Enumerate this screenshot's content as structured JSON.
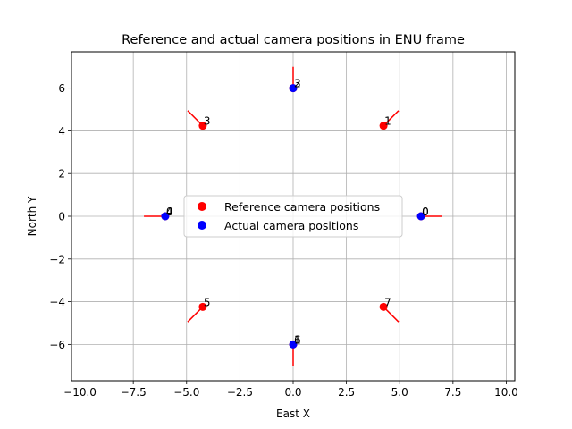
{
  "chart_data": {
    "type": "scatter",
    "title": "Reference and actual camera positions in ENU frame",
    "xlabel": "East X",
    "ylabel": "North Y",
    "xlim": [
      -10.4,
      10.4
    ],
    "ylim": [
      -7.7,
      7.7
    ],
    "xticks": [
      -10.0,
      -7.5,
      -5.0,
      -2.5,
      0.0,
      2.5,
      5.0,
      7.5,
      10.0
    ],
    "xtick_labels": [
      "−10.0",
      "−7.5",
      "−5.0",
      "−2.5",
      "0.0",
      "2.5",
      "5.0",
      "7.5",
      "10.0"
    ],
    "yticks": [
      -6,
      -4,
      -2,
      0,
      2,
      4,
      6
    ],
    "ytick_labels": [
      "−6",
      "−4",
      "−2",
      "0",
      "2",
      "4",
      "6"
    ],
    "grid": true,
    "legend_position": "center",
    "series": [
      {
        "name": "Reference camera positions",
        "color": "#ff0000",
        "points": [
          {
            "x": 6.0,
            "y": 0.0,
            "label": "0",
            "dir_deg": 0
          },
          {
            "x": 4.24,
            "y": 4.24,
            "label": "1",
            "dir_deg": 45
          },
          {
            "x": 0.0,
            "y": 6.0,
            "label": "2",
            "dir_deg": 90
          },
          {
            "x": -4.24,
            "y": 4.24,
            "label": "3",
            "dir_deg": 135
          },
          {
            "x": -6.0,
            "y": 0.0,
            "label": "4",
            "dir_deg": 180
          },
          {
            "x": -4.24,
            "y": -4.24,
            "label": "5",
            "dir_deg": 225
          },
          {
            "x": 0.0,
            "y": -6.0,
            "label": "6",
            "dir_deg": 270
          },
          {
            "x": 4.24,
            "y": -4.24,
            "label": "7",
            "dir_deg": 315
          }
        ]
      },
      {
        "name": "Actual camera positions",
        "color": "#0000ff",
        "points": [
          {
            "x": 6.0,
            "y": 0.0,
            "label": "0"
          },
          {
            "x": 0.0,
            "y": 6.0,
            "label": "3"
          },
          {
            "x": -6.0,
            "y": 0.0,
            "label": "0"
          },
          {
            "x": 0.0,
            "y": -6.0,
            "label": "1"
          }
        ]
      }
    ]
  }
}
